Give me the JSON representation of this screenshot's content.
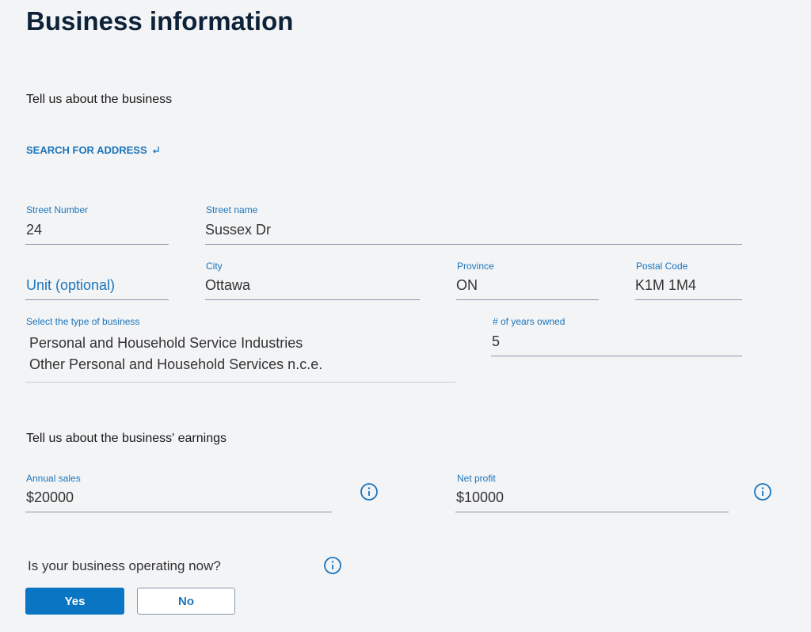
{
  "header": {
    "title": "Business information"
  },
  "business_section": {
    "heading": "Tell us about the business",
    "search_link": "SEARCH FOR ADDRESS",
    "fields": {
      "street_number": {
        "label": "Street Number",
        "value": "24"
      },
      "street_name": {
        "label": "Street name",
        "value": "Sussex Dr"
      },
      "unit": {
        "placeholder": "Unit (optional)"
      },
      "city": {
        "label": "City",
        "value": "Ottawa"
      },
      "province": {
        "label": "Province",
        "value": "ON"
      },
      "postal_code": {
        "label": "Postal Code",
        "value": "K1M 1M4"
      },
      "business_type": {
        "label": "Select the type of business",
        "value": [
          "Personal and Household Service Industries",
          "Other Personal and Household Services n.c.e."
        ]
      },
      "years_owned": {
        "label": "# of years owned",
        "value": "5"
      }
    }
  },
  "earnings_section": {
    "heading": "Tell us about the business' earnings",
    "fields": {
      "annual_sales": {
        "label": "Annual sales",
        "value": "$20000"
      },
      "net_profit": {
        "label": "Net profit",
        "value": "$10000"
      }
    }
  },
  "operating_question": {
    "text": "Is your business operating now?",
    "options": [
      "Yes",
      "No"
    ]
  }
}
